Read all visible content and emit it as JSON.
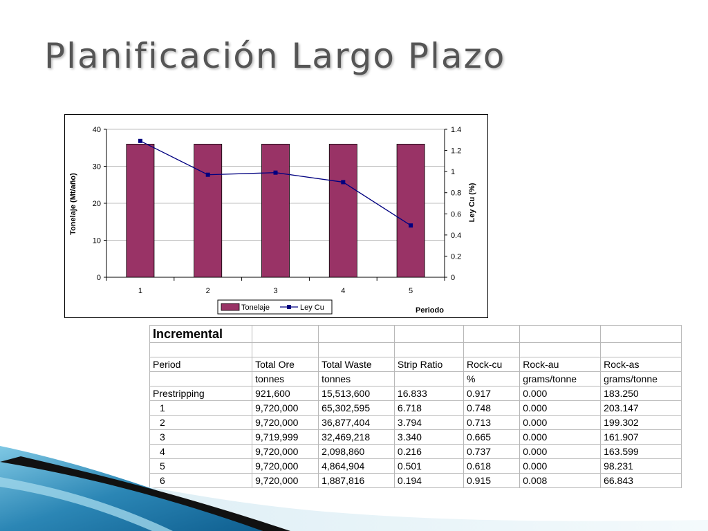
{
  "slide": {
    "title": "Planificación Largo Plazo"
  },
  "colors": {
    "bar": "#993366",
    "line": "#000080",
    "title_text": "#555555"
  },
  "chart_data": {
    "type": "bar",
    "categories": [
      "1",
      "2",
      "3",
      "4",
      "5"
    ],
    "series": [
      {
        "name": "Tonelaje",
        "type": "bar",
        "axis": "left",
        "values": [
          36,
          36,
          36,
          36,
          36
        ]
      },
      {
        "name": "Ley Cu",
        "type": "line",
        "axis": "right",
        "values": [
          1.29,
          0.97,
          0.99,
          0.9,
          0.49
        ]
      }
    ],
    "xlabel": "Periodo",
    "ylabel": "Tonelaje (Mt/año)",
    "y2label": "Ley Cu (%)",
    "ylim": [
      0,
      40
    ],
    "y2lim": [
      0,
      1.4
    ],
    "yticks": [
      "0",
      "10",
      "20",
      "30",
      "40"
    ],
    "y2ticks": [
      "0",
      "0.2",
      "0.4",
      "0.6",
      "0.8",
      "1",
      "1.2",
      "1.4"
    ],
    "grid": true,
    "legend": "bottom-center"
  },
  "table": {
    "title": "Incremental",
    "headers": [
      "Period",
      "Total Ore",
      "Total Waste",
      "Strip Ratio",
      "Rock-cu",
      "Rock-au",
      "Rock-as"
    ],
    "units": [
      "",
      "tonnes",
      "tonnes",
      "",
      "%",
      "grams/tonne",
      "grams/tonne"
    ],
    "rows": [
      [
        "Prestripping",
        "921,600",
        "15,513,600",
        "16.833",
        "0.917",
        "0.000",
        "183.250"
      ],
      [
        "1",
        "9,720,000",
        "65,302,595",
        "6.718",
        "0.748",
        "0.000",
        "203.147"
      ],
      [
        "2",
        "9,720,000",
        "36,877,404",
        "3.794",
        "0.713",
        "0.000",
        "199.302"
      ],
      [
        "3",
        "9,719,999",
        "32,469,218",
        "3.340",
        "0.665",
        "0.000",
        "161.907"
      ],
      [
        "4",
        "9,720,000",
        "2,098,860",
        "0.216",
        "0.737",
        "0.000",
        "163.599"
      ],
      [
        "5",
        "9,720,000",
        "4,864,904",
        "0.501",
        "0.618",
        "0.000",
        "98.231"
      ],
      [
        "6",
        "9,720,000",
        "1,887,816",
        "0.194",
        "0.915",
        "0.008",
        "66.843"
      ]
    ]
  }
}
